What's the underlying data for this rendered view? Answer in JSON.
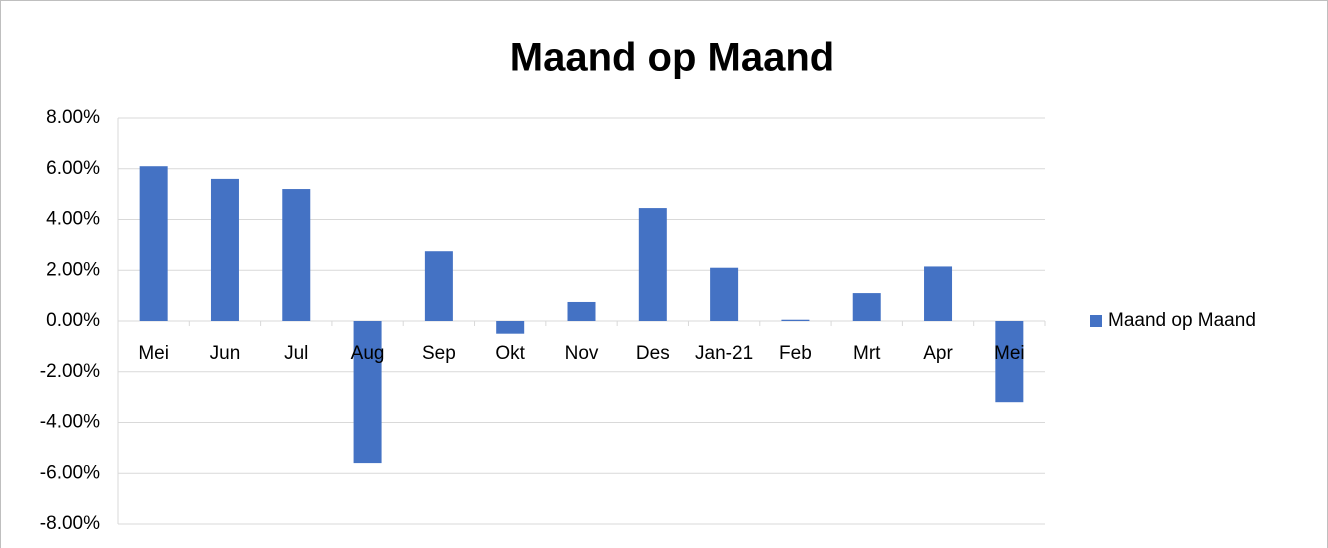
{
  "chart_data": {
    "type": "bar",
    "title": "Maand op Maand",
    "categories": [
      "Mei",
      "Jun",
      "Jul",
      "Aug",
      "Sep",
      "Okt",
      "Nov",
      "Des",
      "Jan-21",
      "Feb",
      "Mrt",
      "Apr",
      "Mei"
    ],
    "series": [
      {
        "name": "Maand op Maand",
        "color": "#4472c4",
        "values": [
          6.1,
          5.6,
          5.2,
          -5.6,
          2.75,
          -0.5,
          0.75,
          4.45,
          2.1,
          0.05,
          1.1,
          2.15,
          -3.2
        ]
      }
    ],
    "ylim": [
      -8,
      8
    ],
    "yticks": [
      {
        "value": -8,
        "label": "-8.00%"
      },
      {
        "value": -6,
        "label": "-6.00%"
      },
      {
        "value": -4,
        "label": "-4.00%"
      },
      {
        "value": -2,
        "label": "-2.00%"
      },
      {
        "value": 0,
        "label": "0.00%"
      },
      {
        "value": 2,
        "label": "2.00%"
      },
      {
        "value": 4,
        "label": "4.00%"
      },
      {
        "value": 6,
        "label": "6.00%"
      },
      {
        "value": 8,
        "label": "8.00%"
      }
    ],
    "grid": true,
    "legend": "right"
  }
}
